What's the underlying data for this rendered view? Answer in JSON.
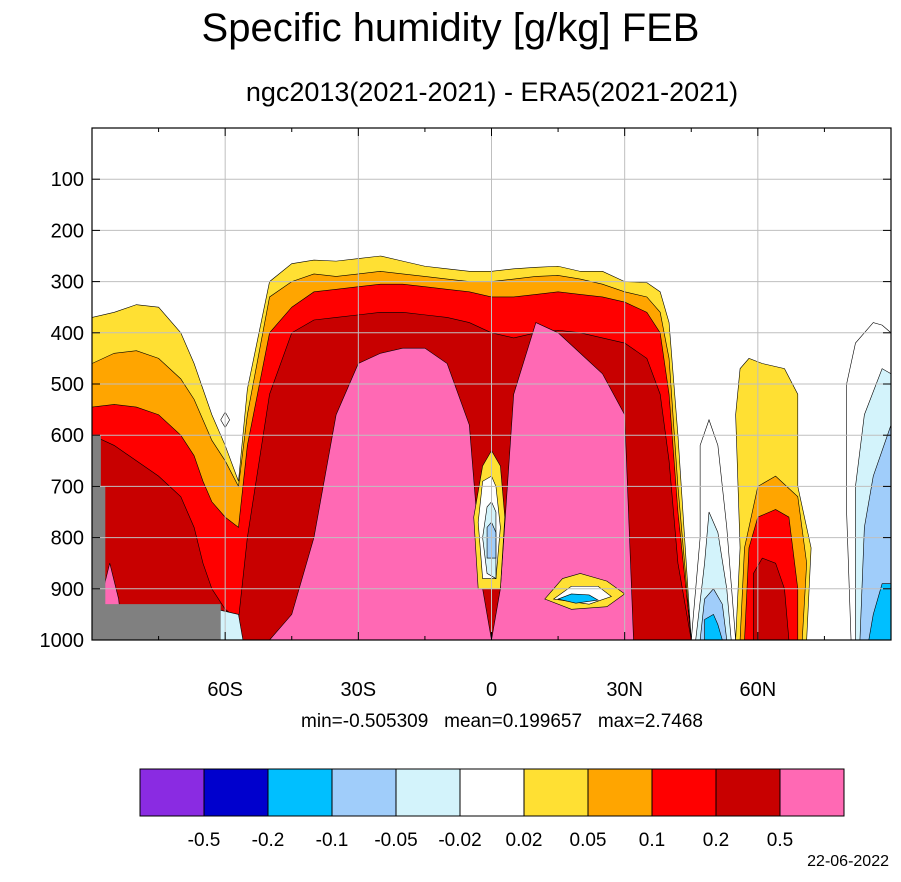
{
  "title": "Specific humidity [g/kg] FEB",
  "subtitle": "ngc2013(2021-2021) - ERA5(2021-2021)",
  "stats": {
    "text": "min=-0.505309   mean=0.199657   max=2.7468",
    "min": -0.505309,
    "mean": 0.199657,
    "max": 2.7468
  },
  "date": "22-06-2022",
  "chart_data": {
    "type": "heatmap",
    "title": "Specific humidity [g/kg] FEB",
    "subtitle": "ngc2013(2021-2021) - ERA5(2021-2021)",
    "xlabel": "",
    "ylabel": "",
    "x_ticks": [
      "60S",
      "30S",
      "0",
      "30N",
      "60N"
    ],
    "x_tick_values": [
      -60,
      -30,
      0,
      30,
      60
    ],
    "xlim": [
      -90,
      90
    ],
    "y_ticks": [
      "100",
      "200",
      "300",
      "400",
      "500",
      "600",
      "700",
      "800",
      "900",
      "1000"
    ],
    "y_tick_values": [
      100,
      200,
      300,
      400,
      500,
      600,
      700,
      800,
      900,
      1000
    ],
    "ylim": [
      1000,
      0
    ],
    "grid": true,
    "colorbar": {
      "levels": [
        "-0.5",
        "-0.2",
        "-0.1",
        "-0.05",
        "-0.02",
        "0.02",
        "0.05",
        "0.1",
        "0.2",
        "0.5"
      ],
      "colors": [
        "#8a2be2",
        "#0000cd",
        "#00bfff",
        "#a0cdfa",
        "#d3f3fb",
        "#ffffff",
        "#ffe033",
        "#ffa500",
        "#ff0000",
        "#c80000",
        "#ff69b4"
      ]
    },
    "missing_color": "#808080",
    "bands": [
      {
        "level": "0.02",
        "color": "#ffe033",
        "lat": [
          -90,
          -85,
          -80,
          -75,
          -70,
          -67,
          -65,
          -63,
          -60,
          -57,
          -55,
          -50,
          -45,
          -40,
          -35,
          -30,
          -25,
          -20,
          -15,
          -10,
          -5,
          0,
          5,
          10,
          15,
          20,
          25,
          30,
          35,
          38,
          40,
          42,
          45
        ],
        "top": [
          370,
          360,
          345,
          350,
          400,
          460,
          510,
          560,
          620,
          690,
          510,
          300,
          265,
          258,
          260,
          255,
          250,
          260,
          270,
          275,
          280,
          280,
          275,
          272,
          270,
          280,
          280,
          300,
          302,
          320,
          380,
          600,
          1000
        ]
      },
      {
        "level": "0.05",
        "color": "#ffa500",
        "lat": [
          -90,
          -85,
          -80,
          -75,
          -70,
          -67,
          -65,
          -63,
          -60,
          -57,
          -55,
          -50,
          -45,
          -40,
          -35,
          -30,
          -25,
          -20,
          -15,
          -10,
          -5,
          0,
          5,
          10,
          15,
          20,
          25,
          30,
          35,
          38,
          40,
          42,
          45
        ],
        "top": [
          460,
          440,
          435,
          450,
          490,
          530,
          570,
          610,
          650,
          700,
          560,
          330,
          300,
          285,
          290,
          285,
          280,
          285,
          290,
          295,
          300,
          300,
          295,
          290,
          288,
          295,
          305,
          320,
          330,
          360,
          450,
          700,
          1000
        ]
      },
      {
        "level": "0.1",
        "color": "#ff0000",
        "lat": [
          -90,
          -85,
          -80,
          -75,
          -70,
          -67,
          -65,
          -63,
          -60,
          -57,
          -55,
          -50,
          -45,
          -40,
          -35,
          -30,
          -25,
          -20,
          -15,
          -10,
          -5,
          0,
          5,
          10,
          15,
          20,
          25,
          30,
          35,
          38,
          40,
          42,
          45
        ],
        "top": [
          545,
          540,
          545,
          560,
          600,
          640,
          690,
          730,
          760,
          780,
          620,
          400,
          350,
          320,
          315,
          310,
          305,
          305,
          310,
          315,
          320,
          330,
          330,
          325,
          320,
          325,
          330,
          340,
          360,
          400,
          520,
          750,
          1000
        ]
      },
      {
        "level": "0.2",
        "color": "#c80000",
        "lat": [
          -90,
          -85,
          -80,
          -75,
          -70,
          -67,
          -65,
          -63,
          -60,
          -57,
          -55,
          -50,
          -45,
          -40,
          -35,
          -30,
          -25,
          -20,
          -15,
          -10,
          -5,
          0,
          5,
          10,
          15,
          20,
          25,
          30,
          35,
          38,
          40,
          42,
          45
        ],
        "top": [
          600,
          620,
          650,
          680,
          720,
          780,
          850,
          900,
          940,
          960,
          800,
          520,
          400,
          375,
          370,
          365,
          360,
          360,
          365,
          370,
          380,
          400,
          410,
          400,
          395,
          400,
          410,
          420,
          450,
          520,
          650,
          850,
          1000
        ]
      },
      {
        "level": "0.5",
        "color": "#ff69b4",
        "lat": [
          -50,
          -45,
          -40,
          -35,
          -30,
          -25,
          -20,
          -15,
          -10,
          -5,
          -2,
          0,
          2,
          5,
          10,
          15,
          20,
          25,
          30,
          32
        ],
        "top": [
          1000,
          950,
          800,
          560,
          460,
          440,
          430,
          430,
          460,
          580,
          900,
          1000,
          900,
          520,
          380,
          400,
          440,
          480,
          560,
          1000
        ]
      }
    ]
  }
}
